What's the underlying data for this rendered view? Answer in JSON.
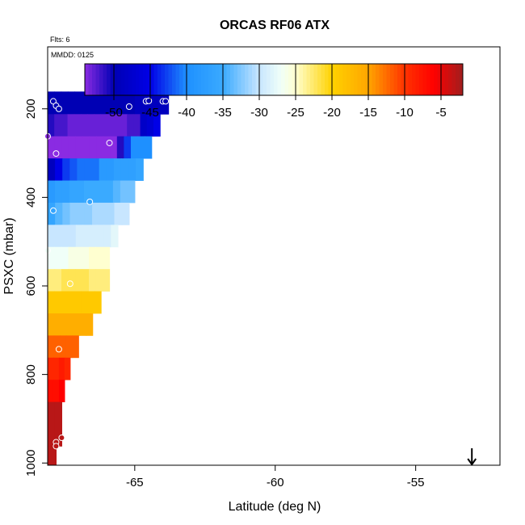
{
  "chart_data": {
    "type": "heatmap",
    "title": "ORCAS RF06 ATX",
    "annotations": [
      "Flts: 6",
      "MMDD: 0125"
    ],
    "xlabel": "Latitude (deg N)",
    "ylabel": "PSXC (mbar)",
    "xlim": [
      -68.1,
      -52.0
    ],
    "ylim": [
      1005,
      60
    ],
    "y_reversed": true,
    "x_ticks": [
      -65,
      -60,
      -55
    ],
    "y_ticks": [
      200,
      400,
      600,
      800,
      1000
    ],
    "colorbar": {
      "range": [
        -54,
        -2
      ],
      "ticks": [
        -50,
        -45,
        -40,
        -35,
        -30,
        -25,
        -20,
        -15,
        -10,
        -5
      ],
      "stops": [
        [
          -54,
          "#8a2be2"
        ],
        [
          -50,
          "#0000b4"
        ],
        [
          -45,
          "#0000e6"
        ],
        [
          -40,
          "#1e90ff"
        ],
        [
          -35,
          "#3aaaff"
        ],
        [
          -30,
          "#c8e6ff"
        ],
        [
          -27,
          "#f0fff8"
        ],
        [
          -25,
          "#ffffd0"
        ],
        [
          -20,
          "#ffd200"
        ],
        [
          -15,
          "#ffa500"
        ],
        [
          -10,
          "#ff3300"
        ],
        [
          -6,
          "#ff0000"
        ],
        [
          -2,
          "#a01e1e"
        ]
      ]
    },
    "bins": [
      {
        "p": [
          161,
          212
        ],
        "lat_end": -63.8,
        "vals": [
          -50,
          -50,
          -50,
          -50,
          -50,
          -50,
          -50,
          -50,
          -50,
          -50,
          -50,
          -50,
          -50,
          -49,
          -49,
          -49,
          -49,
          -49
        ]
      },
      {
        "p": [
          212,
          262
        ],
        "lat_end": -64.1,
        "vals": [
          -51,
          -52,
          -52,
          -53,
          -53,
          -53,
          -53,
          -53,
          -53,
          -53,
          -53,
          -53,
          -52,
          -52,
          -48,
          -47,
          -45
        ]
      },
      {
        "p": [
          262,
          312
        ],
        "lat_end": -64.4,
        "vals": [
          -54,
          -54,
          -54,
          -54,
          -54,
          -54,
          -54,
          -54,
          -54,
          -54,
          -51,
          -43,
          -40,
          -40,
          -40
        ]
      },
      {
        "p": [
          312,
          362
        ],
        "lat_end": -64.7,
        "vals": [
          -49,
          -45,
          -43,
          -42,
          -41,
          -41,
          -41,
          -38,
          -38,
          -37,
          -37,
          -37,
          -36
        ]
      },
      {
        "p": [
          362,
          412
        ],
        "lat_end": -65.0,
        "vals": [
          -38,
          -37,
          -37,
          -36,
          -36,
          -35,
          -35,
          -35,
          -35,
          -34,
          -33,
          -33
        ]
      },
      {
        "p": [
          412,
          462
        ],
        "lat_end": -65.2,
        "vals": [
          -36,
          -34,
          -33,
          -32,
          -32,
          -32,
          -31,
          -31,
          -31,
          -30,
          -30
        ]
      },
      {
        "p": [
          462,
          512
        ],
        "lat_end": -65.6,
        "vals": [
          -30,
          -30,
          -30,
          -30,
          -29,
          -29,
          -29,
          -29,
          -29,
          -28
        ]
      },
      {
        "p": [
          512,
          562
        ],
        "lat_end": -65.9,
        "vals": [
          -27,
          -27,
          -27,
          -26,
          -26,
          -26,
          -25,
          -25,
          -25
        ]
      },
      {
        "p": [
          562,
          612
        ],
        "lat_end": -65.9,
        "vals": [
          -23,
          -23,
          -22,
          -22,
          -22,
          -22,
          -23,
          -23,
          -23
        ]
      },
      {
        "p": [
          612,
          662
        ],
        "lat_end": -66.2,
        "vals": [
          -19,
          -19,
          -19,
          -19,
          -19,
          -19,
          -19,
          -19
        ]
      },
      {
        "p": [
          662,
          712
        ],
        "lat_end": -66.5,
        "vals": [
          -16,
          -16,
          -16,
          -16,
          -16,
          -16,
          -16
        ]
      },
      {
        "p": [
          712,
          762
        ],
        "lat_end": -67.0,
        "vals": [
          -12,
          -12,
          -12,
          -12,
          -12
        ]
      },
      {
        "p": [
          762,
          812
        ],
        "lat_end": -67.3,
        "vals": [
          -9,
          -9,
          -8,
          -9
        ]
      },
      {
        "p": [
          812,
          862
        ],
        "lat_end": -67.5,
        "vals": [
          -7,
          -7,
          -6
        ]
      },
      {
        "p": [
          862,
          962
        ],
        "lat_end": -67.6,
        "vals": [
          -3,
          -3
        ]
      },
      {
        "p": [
          962,
          1005
        ],
        "lat_end": -67.8,
        "vals": [
          -3
        ]
      }
    ],
    "points": [
      {
        "lat": -67.9,
        "p": 183,
        "v": -50
      },
      {
        "lat": -67.8,
        "p": 193,
        "v": -50
      },
      {
        "lat": -67.7,
        "p": 200,
        "v": -50
      },
      {
        "lat": -65.2,
        "p": 195,
        "v": -50
      },
      {
        "lat": -64.6,
        "p": 183,
        "v": -50
      },
      {
        "lat": -64.5,
        "p": 182,
        "v": -50
      },
      {
        "lat": -64.0,
        "p": 183,
        "v": -50
      },
      {
        "lat": -63.9,
        "p": 183,
        "v": -50
      },
      {
        "lat": -68.1,
        "p": 262,
        "v": -54
      },
      {
        "lat": -65.9,
        "p": 277,
        "v": -54
      },
      {
        "lat": -67.8,
        "p": 301,
        "v": -54
      },
      {
        "lat": -66.6,
        "p": 410,
        "v": -36
      },
      {
        "lat": -67.9,
        "p": 430,
        "v": -36
      },
      {
        "lat": -68.1,
        "p": 520,
        "v": -27
      },
      {
        "lat": -67.3,
        "p": 595,
        "v": -22
      },
      {
        "lat": -67.7,
        "p": 743,
        "v": -12
      },
      {
        "lat": -67.6,
        "p": 943,
        "v": -3
      },
      {
        "lat": -67.8,
        "p": 953,
        "v": -3
      },
      {
        "lat": -67.8,
        "p": 962,
        "v": -3
      }
    ],
    "marker": {
      "lat": -53.0,
      "type": "arrow-down"
    }
  }
}
